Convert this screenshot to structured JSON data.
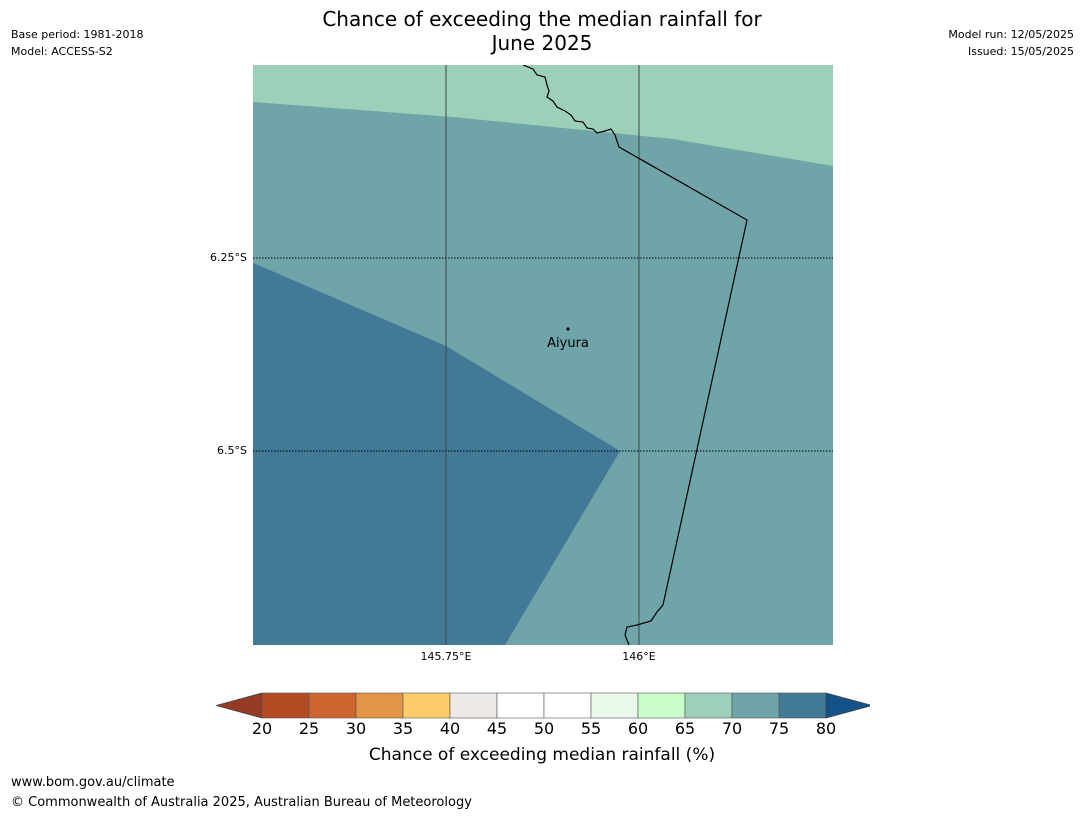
{
  "header": {
    "title_line1": "Chance of exceeding the median rainfall for",
    "title_line2": "June 2025",
    "base_period": "Base period: 1981-2018",
    "model": "Model: ACCESS-S2",
    "model_run": "Model run: 12/05/2025",
    "issued": "Issued: 15/05/2025"
  },
  "map": {
    "place_label": "Aiyura",
    "lat_labels": [
      "6.25°S",
      "6.5°S"
    ],
    "lon_labels": [
      "145.75°E",
      "146°E"
    ],
    "zone_colors": {
      "zone_65_70": "#9dd0b9",
      "zone_70_75": "#6fa4a8",
      "zone_75_80": "#417997"
    }
  },
  "colorbar": {
    "ticks": [
      "20",
      "25",
      "30",
      "35",
      "40",
      "45",
      "50",
      "55",
      "60",
      "65",
      "70",
      "75",
      "80"
    ],
    "colors": [
      "#b34b24",
      "#cd6530",
      "#e39446",
      "#fdcb67",
      "#ede8e4",
      "#ffffff",
      "#ffffff",
      "#eaf8ea",
      "#c9fdca",
      "#9dd0b9",
      "#6fa4a8",
      "#417997"
    ],
    "under_color": "#973a23",
    "over_color": "#145288",
    "label": "Chance of exceeding median rainfall (%)"
  },
  "footer": {
    "url": "www.bom.gov.au/climate",
    "copyright": "© Commonwealth of Australia 2025, Australian Bureau of Meteorology"
  }
}
